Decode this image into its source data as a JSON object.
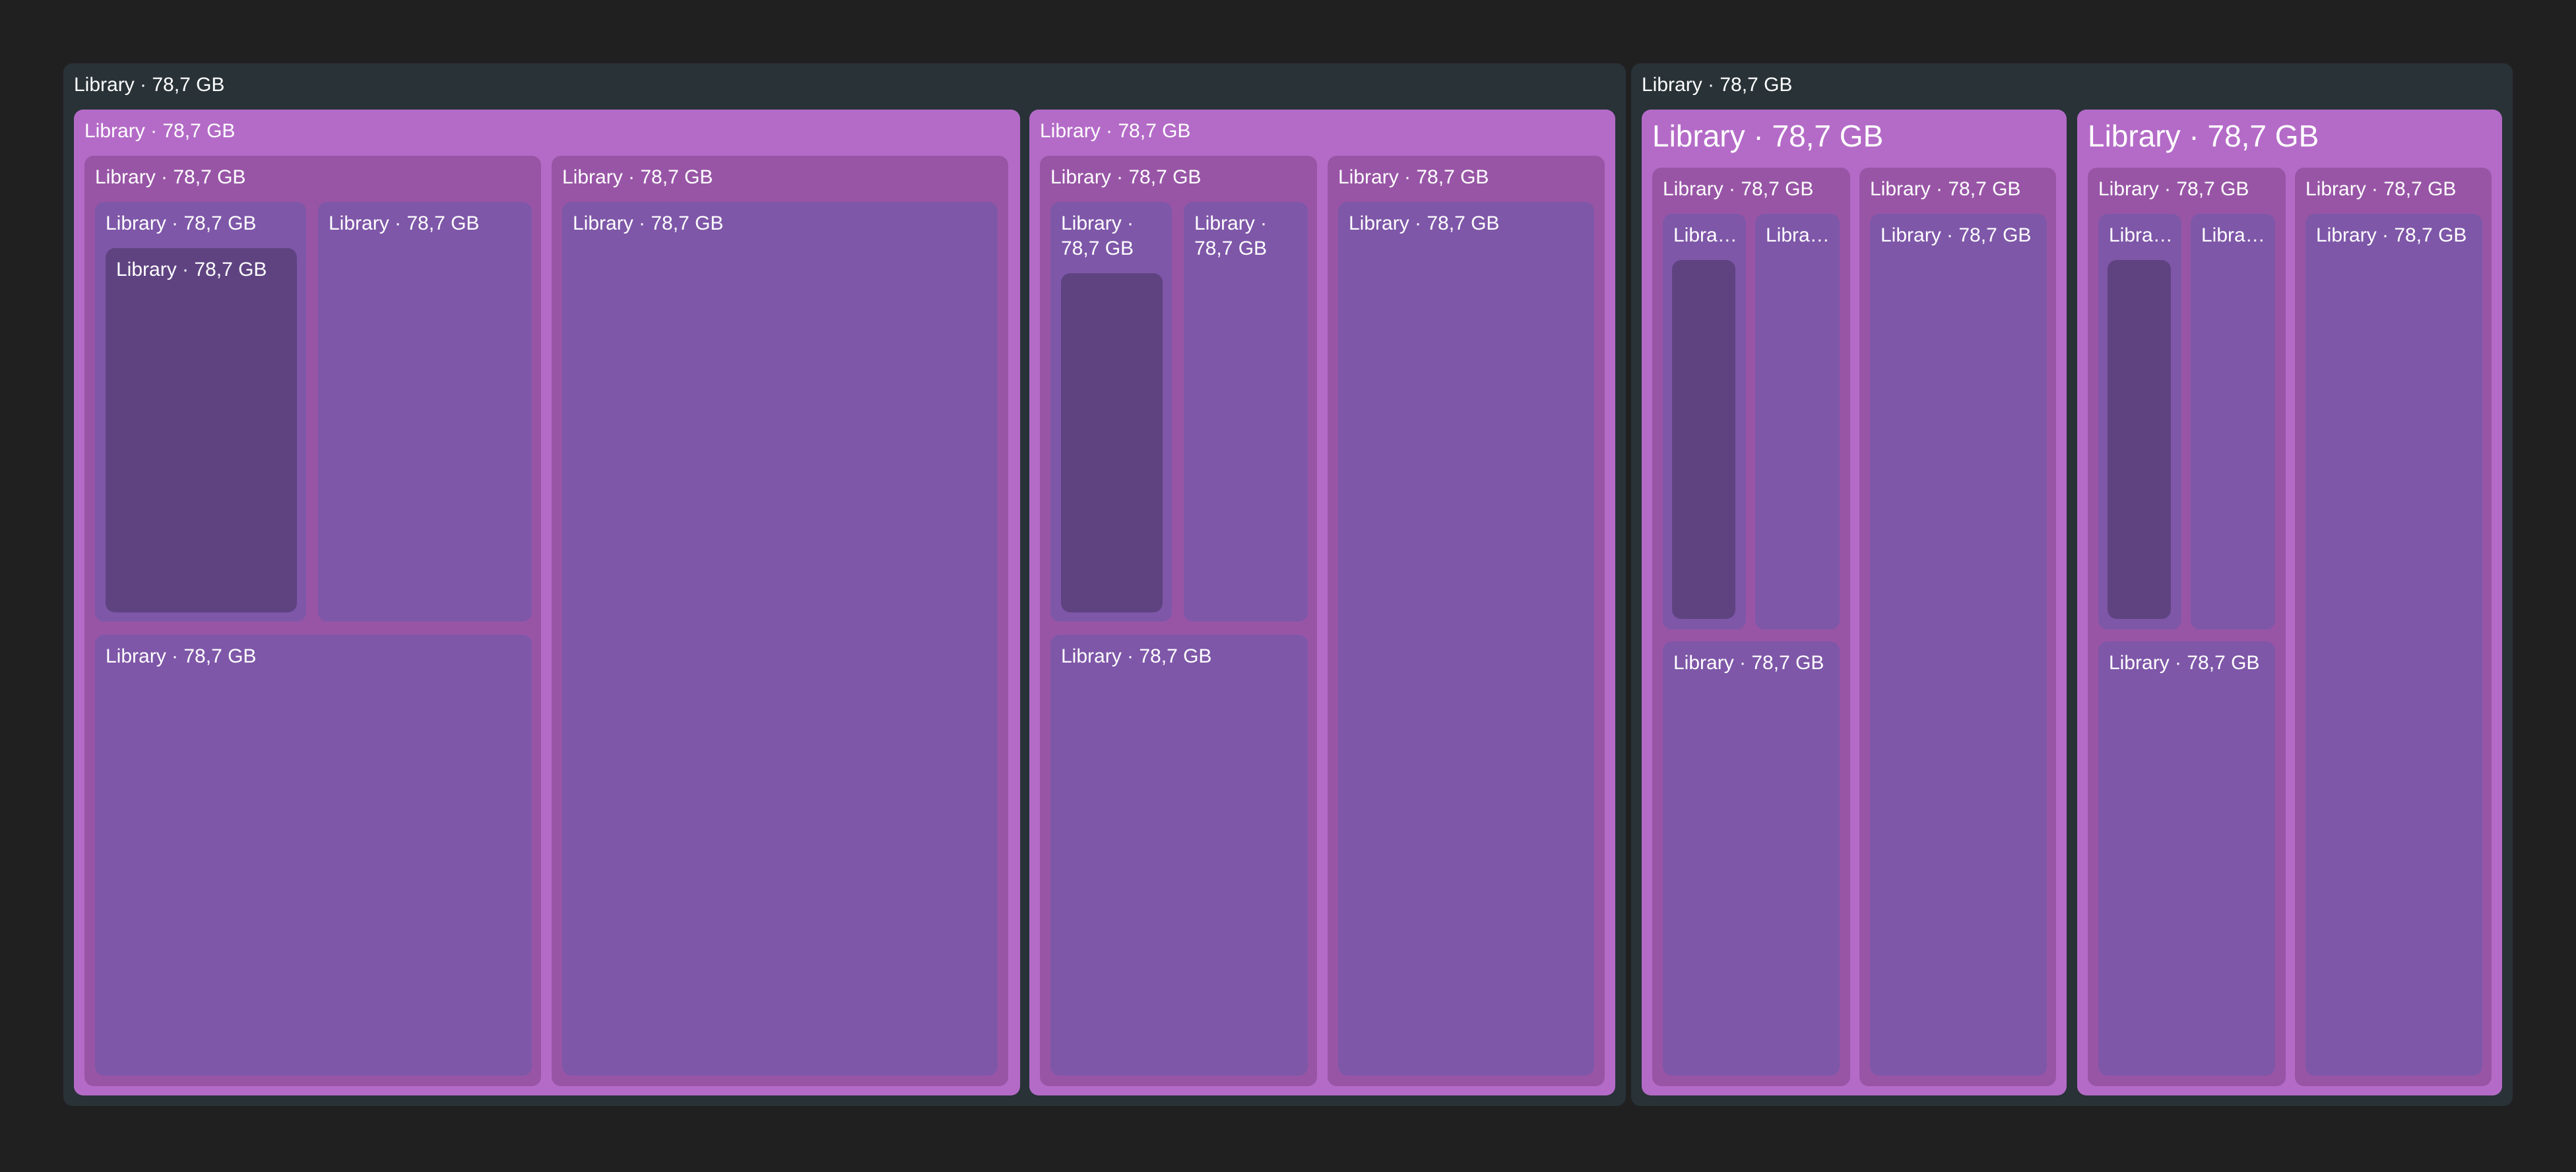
{
  "treemap": {
    "node_label": "Library · 78,7 GB",
    "node_label_short": "Libra…",
    "node_label_line1": "Library ·",
    "node_label_line2": "78,7 GB"
  },
  "colors": {
    "background": "#212021",
    "level0": "#283237",
    "level1": "#b46bc7",
    "level2": "#9855a6",
    "level3": "#7e57a8",
    "level4": "#5f4381",
    "text": "#ffffff"
  }
}
